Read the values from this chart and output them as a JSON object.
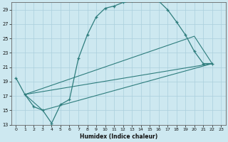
{
  "xlabel": "Humidex (Indice chaleur)",
  "bg_color": "#cde8f0",
  "grid_color": "#aacfdc",
  "line_color": "#2e7d7d",
  "xlim": [
    -0.5,
    23.5
  ],
  "ylim": [
    13,
    30
  ],
  "xticks": [
    0,
    1,
    2,
    3,
    4,
    5,
    6,
    7,
    8,
    9,
    10,
    11,
    12,
    13,
    14,
    15,
    16,
    17,
    18,
    19,
    20,
    21,
    22,
    23
  ],
  "yticks": [
    13,
    15,
    17,
    19,
    21,
    23,
    25,
    27,
    29
  ],
  "series1_x": [
    0,
    1,
    2,
    3,
    4,
    5,
    6,
    7,
    8,
    9,
    10,
    11,
    12,
    13,
    14,
    15,
    16,
    17,
    18,
    19,
    20,
    21,
    22
  ],
  "series1_y": [
    19.5,
    17.2,
    15.5,
    15.0,
    13.2,
    15.8,
    16.5,
    22.2,
    25.5,
    28.0,
    29.2,
    29.5,
    30.0,
    30.2,
    30.3,
    30.3,
    30.2,
    29.0,
    27.3,
    25.5,
    23.2,
    21.5,
    21.5
  ],
  "line2_x": [
    1,
    3,
    22
  ],
  "line2_y": [
    17.2,
    15.0,
    21.5
  ],
  "line3_x": [
    1,
    22
  ],
  "line3_y": [
    17.2,
    21.5
  ],
  "line4_x": [
    1,
    20,
    22
  ],
  "line4_y": [
    17.2,
    25.3,
    21.5
  ]
}
